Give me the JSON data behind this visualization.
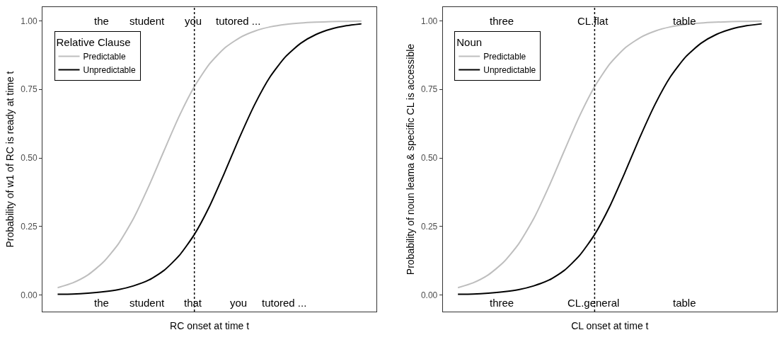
{
  "chart_data": [
    {
      "type": "line",
      "categories": [
        null,
        null,
        null,
        null,
        null,
        null,
        null,
        null,
        null,
        null,
        null,
        null,
        null,
        null,
        null,
        null,
        null,
        null,
        null,
        null,
        null
      ],
      "tick_labels": "y",
      "legend": "top left",
      "legend_title": "Relative Clause",
      "xlabel": "RC onset at time t",
      "ylabel": "Probability of w1 of RC is ready at time t",
      "ylim": [
        -0.06,
        1.05
      ],
      "yticks": [
        {
          "value": 0,
          "label": "0.00"
        },
        {
          "value": 0.25,
          "label": "0.25"
        },
        {
          "value": 0.5,
          "label": "0.50"
        },
        {
          "value": 0.75,
          "label": "0.75"
        },
        {
          "value": 1,
          "label": "1.00"
        }
      ],
      "series": [
        {
          "name": "Predictable",
          "color": "#bebebe",
          "values": [
            0.027,
            0.045,
            0.074,
            0.12,
            0.187,
            0.28,
            0.397,
            0.526,
            0.652,
            0.76,
            0.843,
            0.901,
            0.939,
            0.963,
            0.978,
            0.987,
            0.992,
            0.995,
            0.997,
            0.998,
            0.999
          ]
        },
        {
          "name": "Unpredictable",
          "color": "#000000",
          "values": [
            0.003,
            0.004,
            0.007,
            0.012,
            0.02,
            0.034,
            0.055,
            0.09,
            0.144,
            0.221,
            0.324,
            0.448,
            0.578,
            0.698,
            0.797,
            0.869,
            0.918,
            0.95,
            0.97,
            0.982,
            0.989
          ]
        }
      ],
      "annotations": [
        "the",
        "student",
        "you",
        "tutored ...",
        "the",
        "student",
        "that",
        "you",
        "tutored ..."
      ]
    },
    {
      "type": "line",
      "categories": [
        null,
        null,
        null,
        null,
        null,
        null,
        null,
        null,
        null,
        null,
        null,
        null,
        null,
        null,
        null,
        null,
        null,
        null,
        null,
        null,
        null
      ],
      "tick_labels": "y",
      "legend": "top left",
      "legend_title": "Noun",
      "xlabel": "CL onset at time t",
      "ylabel": "Probability of noun leama & specific CL is accessible",
      "ylim": [
        -0.06,
        1.05
      ],
      "yticks": [
        {
          "value": 0,
          "label": "0.00"
        },
        {
          "value": 0.25,
          "label": "0.25"
        },
        {
          "value": 0.5,
          "label": "0.50"
        },
        {
          "value": 0.75,
          "label": "0.75"
        },
        {
          "value": 1,
          "label": "1.00"
        }
      ],
      "series": [
        {
          "name": "Predictable",
          "color": "#bebebe",
          "values": [
            0.027,
            0.045,
            0.074,
            0.12,
            0.187,
            0.28,
            0.397,
            0.526,
            0.652,
            0.76,
            0.843,
            0.901,
            0.939,
            0.963,
            0.978,
            0.987,
            0.992,
            0.995,
            0.997,
            0.998,
            0.999
          ]
        },
        {
          "name": "Unpredictable",
          "color": "#000000",
          "values": [
            0.003,
            0.004,
            0.007,
            0.012,
            0.02,
            0.034,
            0.055,
            0.09,
            0.144,
            0.221,
            0.324,
            0.448,
            0.578,
            0.698,
            0.797,
            0.869,
            0.918,
            0.95,
            0.97,
            0.982,
            0.989
          ]
        }
      ],
      "annotations": [
        "three",
        "CL.flat",
        "table",
        "three",
        "CL.general",
        "table"
      ]
    }
  ]
}
